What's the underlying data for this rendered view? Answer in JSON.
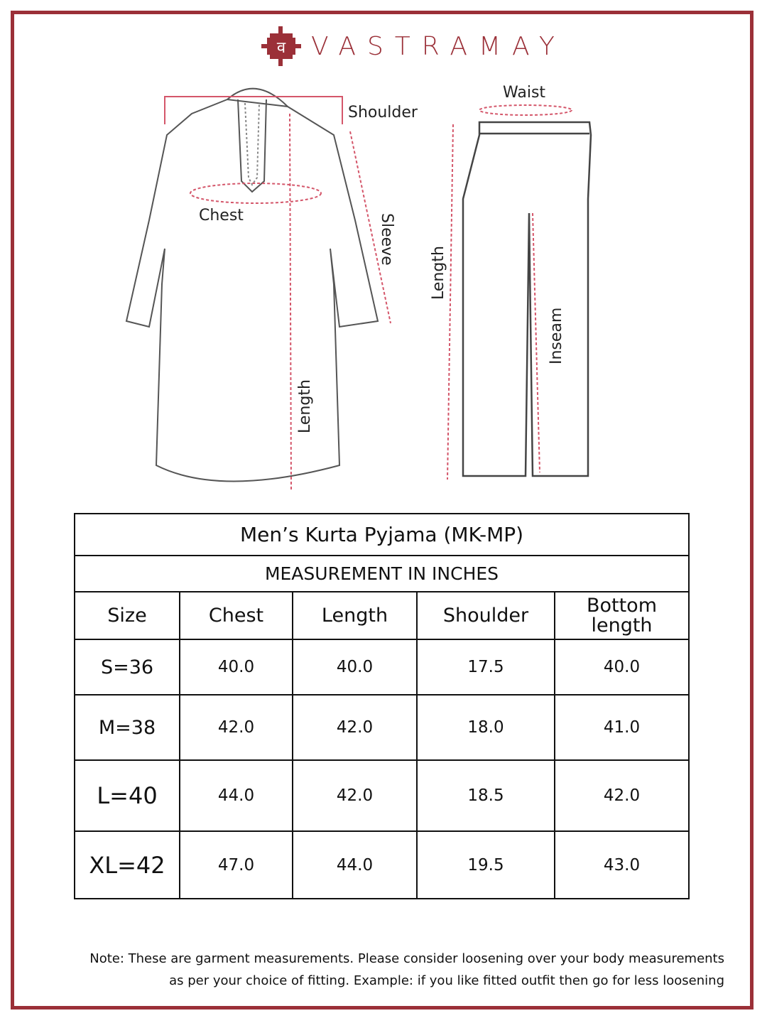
{
  "brand": {
    "name": "VASTRAMAY",
    "logo_glyph": "व",
    "color": "#9b3038"
  },
  "diagram": {
    "kurta_labels": {
      "shoulder": "Shoulder",
      "chest": "Chest",
      "sleeve": "Sleeve",
      "length": "Length"
    },
    "pyjama_labels": {
      "waist": "Waist",
      "length": "Length",
      "inseam": "Inseam"
    }
  },
  "table": {
    "title": "Men’s Kurta Pyjama (MK-MP)",
    "subtitle": "MEASUREMENT IN INCHES",
    "headers": [
      "Size",
      "Chest",
      "Length",
      "Shoulder",
      "Bottom length"
    ],
    "rows": [
      [
        "S=36",
        "40.0",
        "40.0",
        "17.5",
        "40.0"
      ],
      [
        "M=38",
        "42.0",
        "42.0",
        "18.0",
        "41.0"
      ],
      [
        "L=40",
        "44.0",
        "42.0",
        "18.5",
        "42.0"
      ],
      [
        "XL=42",
        "47.0",
        "44.0",
        "19.5",
        "43.0"
      ]
    ]
  },
  "note": {
    "line1": "Note: These are garment measurements. Please consider loosening over your body measurements",
    "line2": "as per your choice of fitting. Example: if you like fitted outfit then go for less loosening"
  }
}
